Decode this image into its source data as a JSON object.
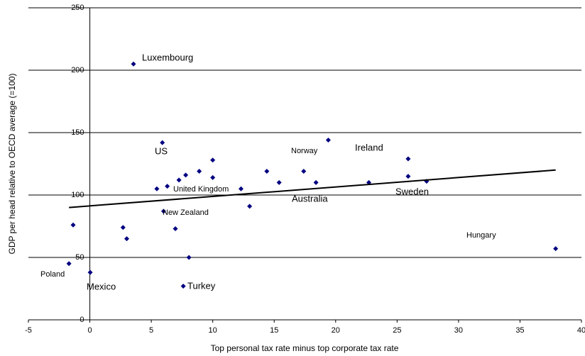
{
  "chart_data": {
    "type": "scatter",
    "x_label": "Top personal tax rate minus top corporate tax rate",
    "y_label": "GDP per head relative to OECD average (=100)",
    "xlim": [
      -5,
      40
    ],
    "xticks": [
      -5,
      0,
      5,
      10,
      15,
      20,
      25,
      30,
      35,
      40
    ],
    "ylim": [
      0,
      250
    ],
    "yticks": [
      0,
      50,
      100,
      150,
      200,
      250
    ],
    "grid": true,
    "series": [
      {
        "color": "#000080",
        "x": [
          3.55,
          5.9,
          19.4,
          25.9,
          25.9,
          27.4,
          22.7,
          17.4,
          18.4,
          14.4,
          15.4,
          12.3,
          13.0,
          10.0,
          10.0,
          8.9,
          7.8,
          7.25,
          6.3,
          5.45,
          6.0,
          6.96,
          8.06,
          7.6,
          2.7,
          3.0,
          -1.36,
          -1.7,
          0.03,
          37.9
        ],
        "values": [
          205,
          142,
          144,
          129,
          115,
          111,
          110,
          119,
          110,
          119,
          110,
          105,
          91,
          128,
          114,
          119,
          116,
          112,
          107,
          105,
          87,
          73,
          50,
          27,
          74,
          65,
          76,
          45,
          38,
          57
        ]
      }
    ],
    "trendline": {
      "x": [
        -1.7,
        37.9
      ],
      "values": [
        90,
        120
      ]
    },
    "annotations": [
      "Luxembourg",
      "US",
      "Norway",
      "Ireland",
      "United Kingdom",
      "Australia",
      "Sweden",
      "New Zealand",
      "Hungary",
      "Poland",
      "Mexico",
      "Turkey"
    ]
  }
}
